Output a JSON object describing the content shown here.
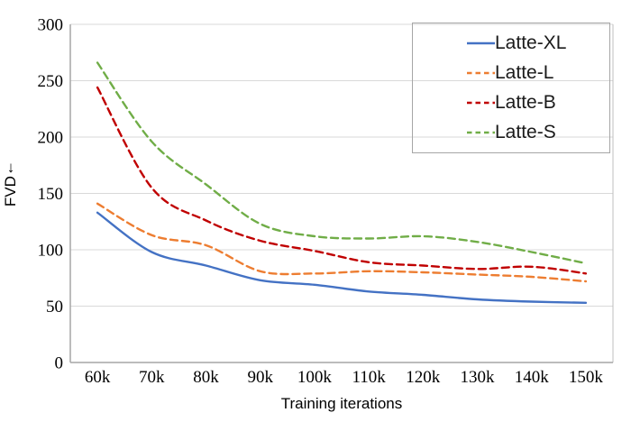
{
  "chart_data": {
    "type": "line",
    "title": "",
    "xlabel": "Training iterations",
    "ylabel": "FVD ↓",
    "ylabel_text": "FVD",
    "ylabel_arrow": "↓",
    "categories": [
      "60k",
      "70k",
      "80k",
      "90k",
      "100k",
      "110k",
      "120k",
      "130k",
      "140k",
      "150k"
    ],
    "y_ticks": [
      0,
      50,
      100,
      150,
      200,
      250,
      300
    ],
    "ylim": [
      0,
      300
    ],
    "grid": true,
    "legend_position": "top-right",
    "series": [
      {
        "name": "Latte-XL",
        "style": "solid",
        "color": "#4472C4",
        "values": [
          133,
          98,
          86,
          73,
          69,
          63,
          60,
          56,
          54,
          53
        ]
      },
      {
        "name": "Latte-L",
        "style": "dashed",
        "color": "#ED7D31",
        "values": [
          141,
          113,
          104,
          81,
          79,
          81,
          80,
          78,
          76,
          72
        ]
      },
      {
        "name": "Latte-B",
        "style": "dashed",
        "color": "#C00000",
        "values": [
          244,
          155,
          126,
          108,
          99,
          89,
          86,
          83,
          85,
          79
        ]
      },
      {
        "name": "Latte-S",
        "style": "dashed",
        "color": "#70AD47",
        "values": [
          266,
          196,
          158,
          123,
          112,
          110,
          112,
          107,
          98,
          88
        ]
      }
    ],
    "colors": {
      "gridline": "#D9D9D9",
      "axis": "#A6A6A6",
      "plot_border": "#BFBFBF",
      "legend_border": "#A6A6A6",
      "text": "#000000"
    }
  }
}
